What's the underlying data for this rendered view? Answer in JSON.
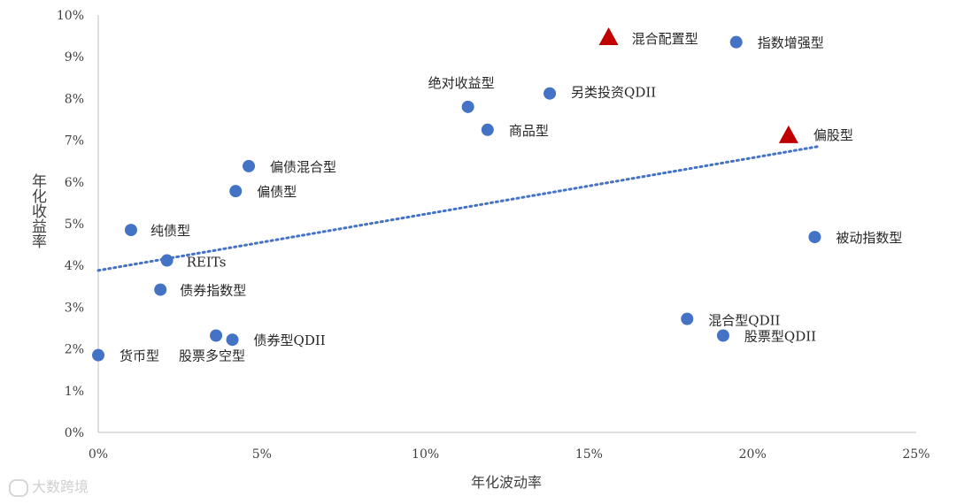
{
  "chart_data": {
    "type": "scatter",
    "title": "",
    "xlabel": "年化波动率",
    "ylabel": "年化收益率",
    "xlim": [
      0,
      25
    ],
    "ylim": [
      0,
      10
    ],
    "xticks": [
      "0%",
      "5%",
      "10%",
      "15%",
      "20%",
      "25%"
    ],
    "yticks": [
      "0%",
      "1%",
      "2%",
      "3%",
      "4%",
      "5%",
      "6%",
      "7%",
      "8%",
      "9%",
      "10%"
    ],
    "grid": false,
    "points": [
      {
        "label": "货币型",
        "x": 0.0,
        "y": 1.85,
        "marker": "circle"
      },
      {
        "label": "纯债型",
        "x": 1.0,
        "y": 4.85,
        "marker": "circle"
      },
      {
        "label": "REITs",
        "x": 2.1,
        "y": 4.12,
        "marker": "circle"
      },
      {
        "label": "债券指数型",
        "x": 1.9,
        "y": 3.42,
        "marker": "circle"
      },
      {
        "label": "股票多空型",
        "x": 3.6,
        "y": 2.32,
        "marker": "circle"
      },
      {
        "label": "债券型QDII",
        "x": 4.1,
        "y": 2.22,
        "marker": "circle"
      },
      {
        "label": "偏债型",
        "x": 4.2,
        "y": 5.78,
        "marker": "circle"
      },
      {
        "label": "偏债混合型",
        "x": 4.6,
        "y": 6.38,
        "marker": "circle"
      },
      {
        "label": "绝对收益型",
        "x": 11.3,
        "y": 7.8,
        "marker": "circle"
      },
      {
        "label": "商品型",
        "x": 11.9,
        "y": 7.25,
        "marker": "circle"
      },
      {
        "label": "另类投资QDII",
        "x": 13.8,
        "y": 8.12,
        "marker": "circle"
      },
      {
        "label": "混合配置型",
        "x": 15.6,
        "y": 9.45,
        "marker": "triangle"
      },
      {
        "label": "指数增强型",
        "x": 19.5,
        "y": 9.35,
        "marker": "circle"
      },
      {
        "label": "混合型QDII",
        "x": 18.0,
        "y": 2.72,
        "marker": "circle"
      },
      {
        "label": "股票型QDII",
        "x": 19.1,
        "y": 2.32,
        "marker": "circle"
      },
      {
        "label": "偏股型",
        "x": 21.1,
        "y": 7.1,
        "marker": "triangle"
      },
      {
        "label": "被动指数型",
        "x": 21.9,
        "y": 4.68,
        "marker": "circle"
      }
    ],
    "trendline": {
      "style": "dotted",
      "x": [
        0,
        22
      ],
      "y": [
        3.88,
        6.85
      ]
    },
    "colors": {
      "circle": "#4472c4",
      "triangle": "#c00000",
      "trend": "#4472c4"
    }
  },
  "watermark": "大数跨境"
}
